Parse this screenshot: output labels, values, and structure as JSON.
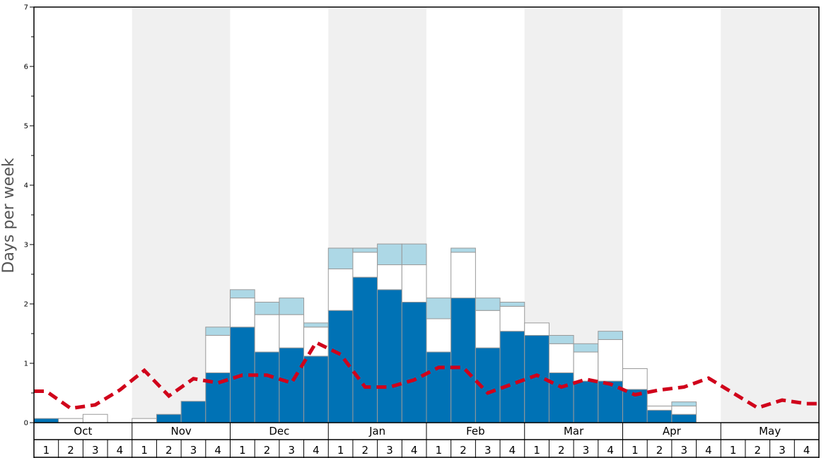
{
  "chart_data": {
    "type": "bar",
    "ylabel": "Days per week",
    "ylim": [
      0,
      7
    ],
    "yticks": [
      "0",
      "1",
      "2",
      "3",
      "4",
      "5",
      "6",
      "7"
    ],
    "months": [
      "Oct",
      "Nov",
      "Dec",
      "Jan",
      "Feb",
      "Mar",
      "Apr",
      "May"
    ],
    "weeks": [
      "1",
      "2",
      "3",
      "4"
    ],
    "colors": {
      "dark_segment": "#0072b5",
      "middle_segment": "#ffffff",
      "top_segment": "#add8e6",
      "line": "#d0021b",
      "band": "#f0f0f0",
      "bar_edge": "#999999"
    },
    "series": [
      {
        "values": [
          0.07,
          0,
          0,
          0,
          0,
          0.14,
          0.36,
          0.84,
          1.61,
          1.19,
          1.26,
          1.12,
          1.89,
          2.45,
          2.24,
          2.03,
          1.19,
          2.1,
          1.26,
          1.54,
          1.47,
          0.84,
          0.7,
          0.7,
          0.56,
          0.21,
          0.14,
          0,
          0,
          0,
          0,
          0
        ]
      },
      {
        "values": [
          0.07,
          0.07,
          0.14,
          0,
          0.07,
          0.14,
          0.36,
          1.47,
          2.1,
          1.82,
          1.82,
          1.61,
          2.59,
          2.87,
          2.66,
          2.66,
          1.75,
          2.87,
          1.89,
          1.96,
          1.68,
          1.33,
          1.19,
          1.4,
          0.91,
          0.28,
          0.28,
          0,
          0,
          0,
          0,
          0
        ]
      },
      {
        "values": [
          0.07,
          0.07,
          0.14,
          0,
          0.07,
          0.14,
          0.36,
          1.61,
          2.24,
          2.03,
          2.1,
          1.68,
          2.94,
          2.94,
          3.01,
          3.01,
          2.1,
          2.94,
          2.1,
          2.03,
          1.68,
          1.47,
          1.33,
          1.54,
          0.91,
          0.28,
          0.35,
          0,
          0,
          0,
          0,
          0
        ]
      },
      {
        "style": "dashed",
        "values": [
          0.53,
          0.24,
          0.3,
          0.55,
          0.88,
          0.45,
          0.74,
          0.67,
          0.8,
          0.8,
          0.67,
          1.35,
          1.15,
          0.6,
          0.6,
          0.72,
          0.93,
          0.93,
          0.5,
          0.65,
          0.8,
          0.6,
          0.73,
          0.65,
          0.47,
          0.55,
          0.6,
          0.75,
          0.5,
          0.25,
          0.38,
          0.32
        ]
      }
    ]
  }
}
